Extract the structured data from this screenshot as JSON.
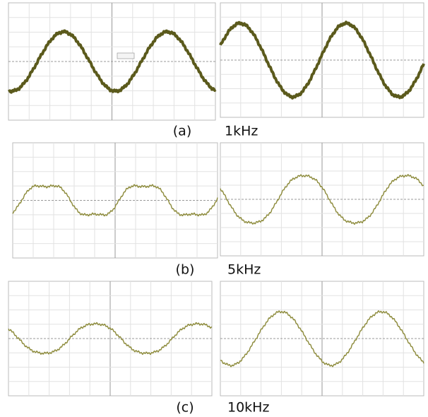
{
  "figure": {
    "rows": [
      {
        "label": "(a)",
        "caption": "1kHz"
      },
      {
        "label": "(b)",
        "caption": "5kHz"
      },
      {
        "label": "(c)",
        "caption": "10kHz"
      }
    ]
  }
}
